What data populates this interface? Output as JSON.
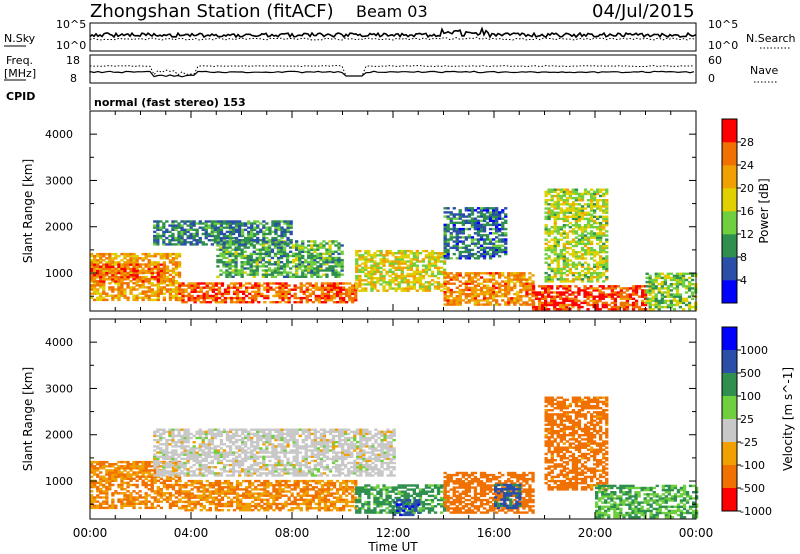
{
  "header": {
    "station": "Zhongshan Station (fitACF)",
    "beam": "Beam 03",
    "date": "04/Jul/2015"
  },
  "noise_panel": {
    "left_label": "N.Sky",
    "right_label": "N.Search",
    "left_ticks": [
      "10^5",
      "10^0"
    ],
    "right_ticks": [
      "10^5",
      "10^0"
    ]
  },
  "freq_panel": {
    "left_label_1": "Freq.",
    "left_label_2": "[MHz]",
    "left_ticks": [
      "18",
      "8"
    ],
    "right_label": "Nave",
    "right_ticks": [
      "60",
      "0"
    ]
  },
  "cpid_panel": {
    "label": "CPID",
    "text": "normal (fast stereo) 153"
  },
  "x_axis": {
    "label": "Time UT",
    "ticks": [
      "00:00",
      "04:00",
      "08:00",
      "12:00",
      "16:00",
      "20:00",
      "00:00"
    ]
  },
  "colors": {
    "power": [
      "#0000ff",
      "#2a4fa8",
      "#2f8f4f",
      "#6fcf3f",
      "#e0d000",
      "#f0a000",
      "#f07000",
      "#ff0000"
    ],
    "velocity": [
      "#0000ff",
      "#2a4fa8",
      "#2f8f4f",
      "#6fcf3f",
      "#c8c8c8",
      "#f0a000",
      "#f07000",
      "#ff0000"
    ]
  },
  "chart_data": [
    {
      "type": "heatmap",
      "title": "",
      "xlabel": "Time UT",
      "ylabel": "Slant Range [km]",
      "y_ticks": [
        "1000",
        "2000",
        "3000",
        "4000"
      ],
      "ylim": [
        180,
        4500
      ],
      "colorbar": {
        "label": "Power [dB]",
        "ticks": [
          "4",
          "8",
          "12",
          "16",
          "20",
          "24",
          "28"
        ],
        "range": [
          0,
          32
        ]
      },
      "regions": [
        {
          "t0": 0.0,
          "t1": 3.5,
          "r0": 400,
          "r1": 1400,
          "level": 22
        },
        {
          "t0": 0.0,
          "t1": 3.0,
          "r0": 800,
          "r1": 1200,
          "level": 26
        },
        {
          "t0": 3.5,
          "t1": 10.5,
          "r0": 350,
          "r1": 800,
          "level": 26
        },
        {
          "t0": 5.0,
          "t1": 10.0,
          "r0": 900,
          "r1": 1700,
          "level": 12
        },
        {
          "t0": 2.5,
          "t1": 8.0,
          "r0": 1600,
          "r1": 2100,
          "level": 9
        },
        {
          "t0": 10.5,
          "t1": 14.0,
          "r0": 600,
          "r1": 1500,
          "level": 18
        },
        {
          "t0": 14.0,
          "t1": 17.5,
          "r0": 300,
          "r1": 1000,
          "level": 24
        },
        {
          "t0": 14.0,
          "t1": 16.5,
          "r0": 1300,
          "r1": 2400,
          "level": 8
        },
        {
          "t0": 17.5,
          "t1": 22.0,
          "r0": 200,
          "r1": 700,
          "level": 28
        },
        {
          "t0": 18.0,
          "t1": 20.5,
          "r0": 800,
          "r1": 2800,
          "level": 16
        },
        {
          "t0": 22.0,
          "t1": 24.0,
          "r0": 200,
          "r1": 1000,
          "level": 14
        }
      ]
    },
    {
      "type": "heatmap",
      "title": "",
      "xlabel": "Time UT",
      "ylabel": "Slant Range [km]",
      "y_ticks": [
        "1000",
        "2000",
        "3000",
        "4000"
      ],
      "ylim": [
        180,
        4500
      ],
      "colorbar": {
        "label": "Velocity [m s^-1]",
        "ticks": [
          "1000",
          "500",
          "100",
          "25",
          "-25",
          "-100",
          "-500",
          "-1000"
        ],
        "range": [
          -1000,
          1000
        ]
      },
      "regions": [
        {
          "t0": 0.0,
          "t1": 3.5,
          "r0": 400,
          "r1": 1400,
          "level": -100
        },
        {
          "t0": 3.5,
          "t1": 10.5,
          "r0": 350,
          "r1": 1000,
          "level": -100
        },
        {
          "t0": 2.5,
          "t1": 12.0,
          "r0": 1100,
          "r1": 2100,
          "level": 0
        },
        {
          "t0": 10.5,
          "t1": 14.0,
          "r0": 300,
          "r1": 900,
          "level": 150
        },
        {
          "t0": 12.0,
          "t1": 13.0,
          "r0": 250,
          "r1": 600,
          "level": 800
        },
        {
          "t0": 14.0,
          "t1": 17.5,
          "r0": 300,
          "r1": 1200,
          "level": -300
        },
        {
          "t0": 16.0,
          "t1": 17.0,
          "r0": 400,
          "r1": 900,
          "level": 700
        },
        {
          "t0": 18.0,
          "t1": 20.5,
          "r0": 800,
          "r1": 2800,
          "level": -200
        },
        {
          "t0": 20.0,
          "t1": 24.0,
          "r0": 200,
          "r1": 900,
          "level": 100
        }
      ]
    }
  ]
}
